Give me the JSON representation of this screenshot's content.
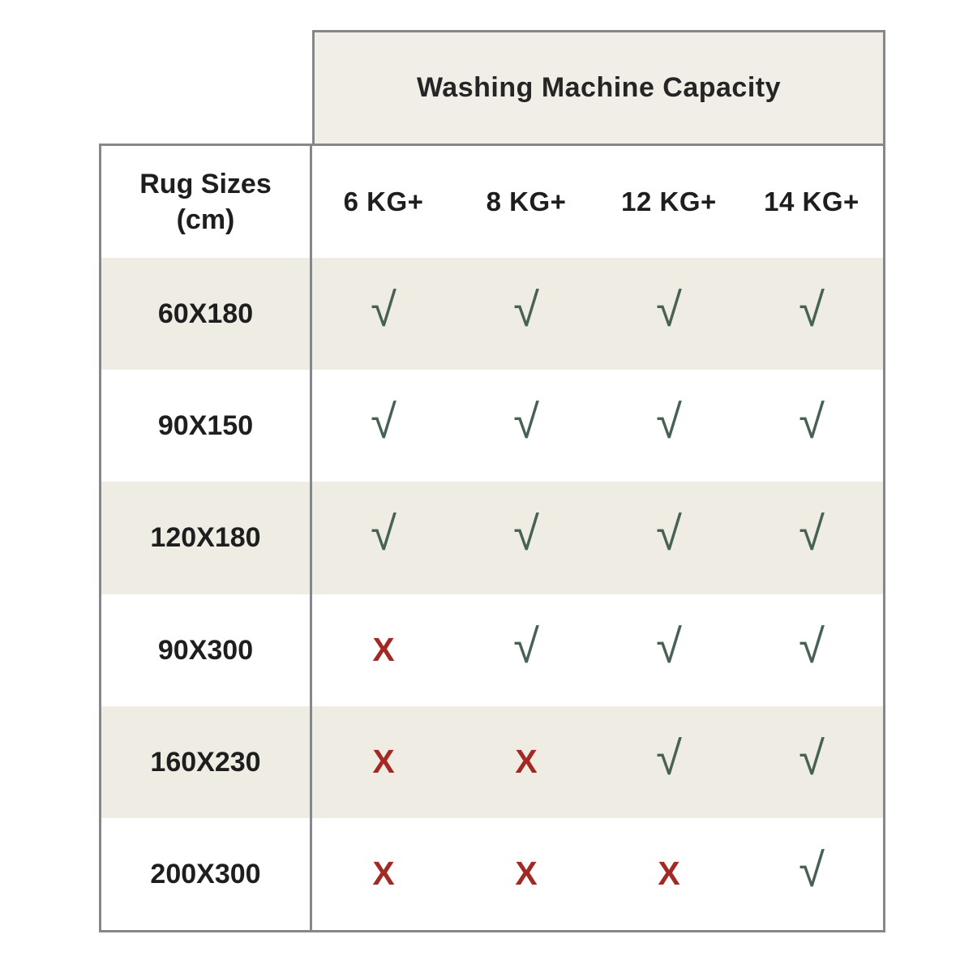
{
  "header": {
    "title": "Washing Machine Capacity"
  },
  "table": {
    "corner": {
      "line1": "Rug Sizes",
      "line2": "(cm)"
    },
    "columns": [
      "6 KG+",
      "8 KG+",
      "12 KG+",
      "14 KG+"
    ],
    "rows": [
      {
        "label": "60X180",
        "cells": [
          {
            "glyph": "√",
            "type": "check"
          },
          {
            "glyph": "√",
            "type": "check"
          },
          {
            "glyph": "√",
            "type": "check"
          },
          {
            "glyph": "√",
            "type": "check"
          }
        ]
      },
      {
        "label": "90X150",
        "cells": [
          {
            "glyph": "√",
            "type": "check"
          },
          {
            "glyph": "√",
            "type": "check"
          },
          {
            "glyph": "√",
            "type": "check"
          },
          {
            "glyph": "√",
            "type": "check"
          }
        ]
      },
      {
        "label": "120X180",
        "cells": [
          {
            "glyph": "√",
            "type": "check"
          },
          {
            "glyph": "√",
            "type": "check"
          },
          {
            "glyph": "√",
            "type": "check"
          },
          {
            "glyph": "√",
            "type": "check"
          }
        ]
      },
      {
        "label": "90X300",
        "cells": [
          {
            "glyph": "X",
            "type": "cross"
          },
          {
            "glyph": "√",
            "type": "check"
          },
          {
            "glyph": "√",
            "type": "check"
          },
          {
            "glyph": "√",
            "type": "check"
          }
        ]
      },
      {
        "label": "160X230",
        "cells": [
          {
            "glyph": "X",
            "type": "cross"
          },
          {
            "glyph": "X",
            "type": "cross"
          },
          {
            "glyph": "√",
            "type": "check"
          },
          {
            "glyph": "√",
            "type": "check"
          }
        ]
      },
      {
        "label": "200X300",
        "cells": [
          {
            "glyph": "X",
            "type": "cross"
          },
          {
            "glyph": "X",
            "type": "cross"
          },
          {
            "glyph": "X",
            "type": "cross"
          },
          {
            "glyph": "√",
            "type": "check"
          }
        ]
      }
    ]
  },
  "colors": {
    "capacity_header_bg": "#f1eee7",
    "row_alt_bg": "#efece4",
    "border_gray": "#85878a",
    "text": "#1e1e1e",
    "check_green": "#476253",
    "cross_red": "#a32a24"
  },
  "chart_data": {
    "type": "table",
    "title": "Washing Machine Capacity",
    "row_header": "Rug Sizes (cm)",
    "columns": [
      "6 KG+",
      "8 KG+",
      "12 KG+",
      "14 KG+"
    ],
    "rows": [
      "60X180",
      "90X150",
      "120X180",
      "90X300",
      "160X230",
      "200X300"
    ],
    "values": [
      [
        "yes",
        "yes",
        "yes",
        "yes"
      ],
      [
        "yes",
        "yes",
        "yes",
        "yes"
      ],
      [
        "yes",
        "yes",
        "yes",
        "yes"
      ],
      [
        "no",
        "yes",
        "yes",
        "yes"
      ],
      [
        "no",
        "no",
        "yes",
        "yes"
      ],
      [
        "no",
        "no",
        "no",
        "yes"
      ]
    ],
    "legend": {
      "check": "fits in machine",
      "cross": "does not fit"
    },
    "layout": "alternating row background beige/white, header band top-right spanning capacity columns"
  }
}
